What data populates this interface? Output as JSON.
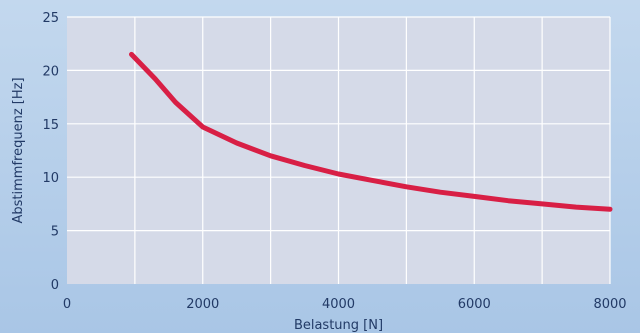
{
  "chart_data": {
    "type": "line",
    "title": "",
    "xlabel": "Belastung [N]",
    "ylabel": "Abstimmfrequenz [Hz]",
    "xlim": [
      0,
      8000
    ],
    "ylim": [
      0,
      25
    ],
    "x_ticks": [
      0,
      2000,
      4000,
      6000,
      8000
    ],
    "y_ticks": [
      0,
      5,
      10,
      15,
      20,
      25
    ],
    "x_gridlines": [
      1000,
      2000,
      3000,
      4000,
      5000,
      6000,
      7000,
      8000
    ],
    "y_gridlines": [
      5,
      10,
      15,
      20,
      25
    ],
    "grid": true,
    "legend": "none",
    "series": [
      {
        "color": "#d81f45",
        "x": [
          950,
          1300,
          1600,
          2000,
          2500,
          3000,
          3500,
          4000,
          4500,
          5000,
          5500,
          6000,
          6500,
          7000,
          7500,
          8000
        ],
        "y": [
          21.5,
          19.2,
          17.0,
          14.7,
          13.2,
          12.0,
          11.1,
          10.3,
          9.7,
          9.1,
          8.6,
          8.2,
          7.8,
          7.5,
          7.2,
          7.0
        ]
      }
    ]
  },
  "colors": {
    "plot_background": "#d5dae8",
    "grid": "#ffffff",
    "series": "#d81f45",
    "text": "#223a66"
  }
}
